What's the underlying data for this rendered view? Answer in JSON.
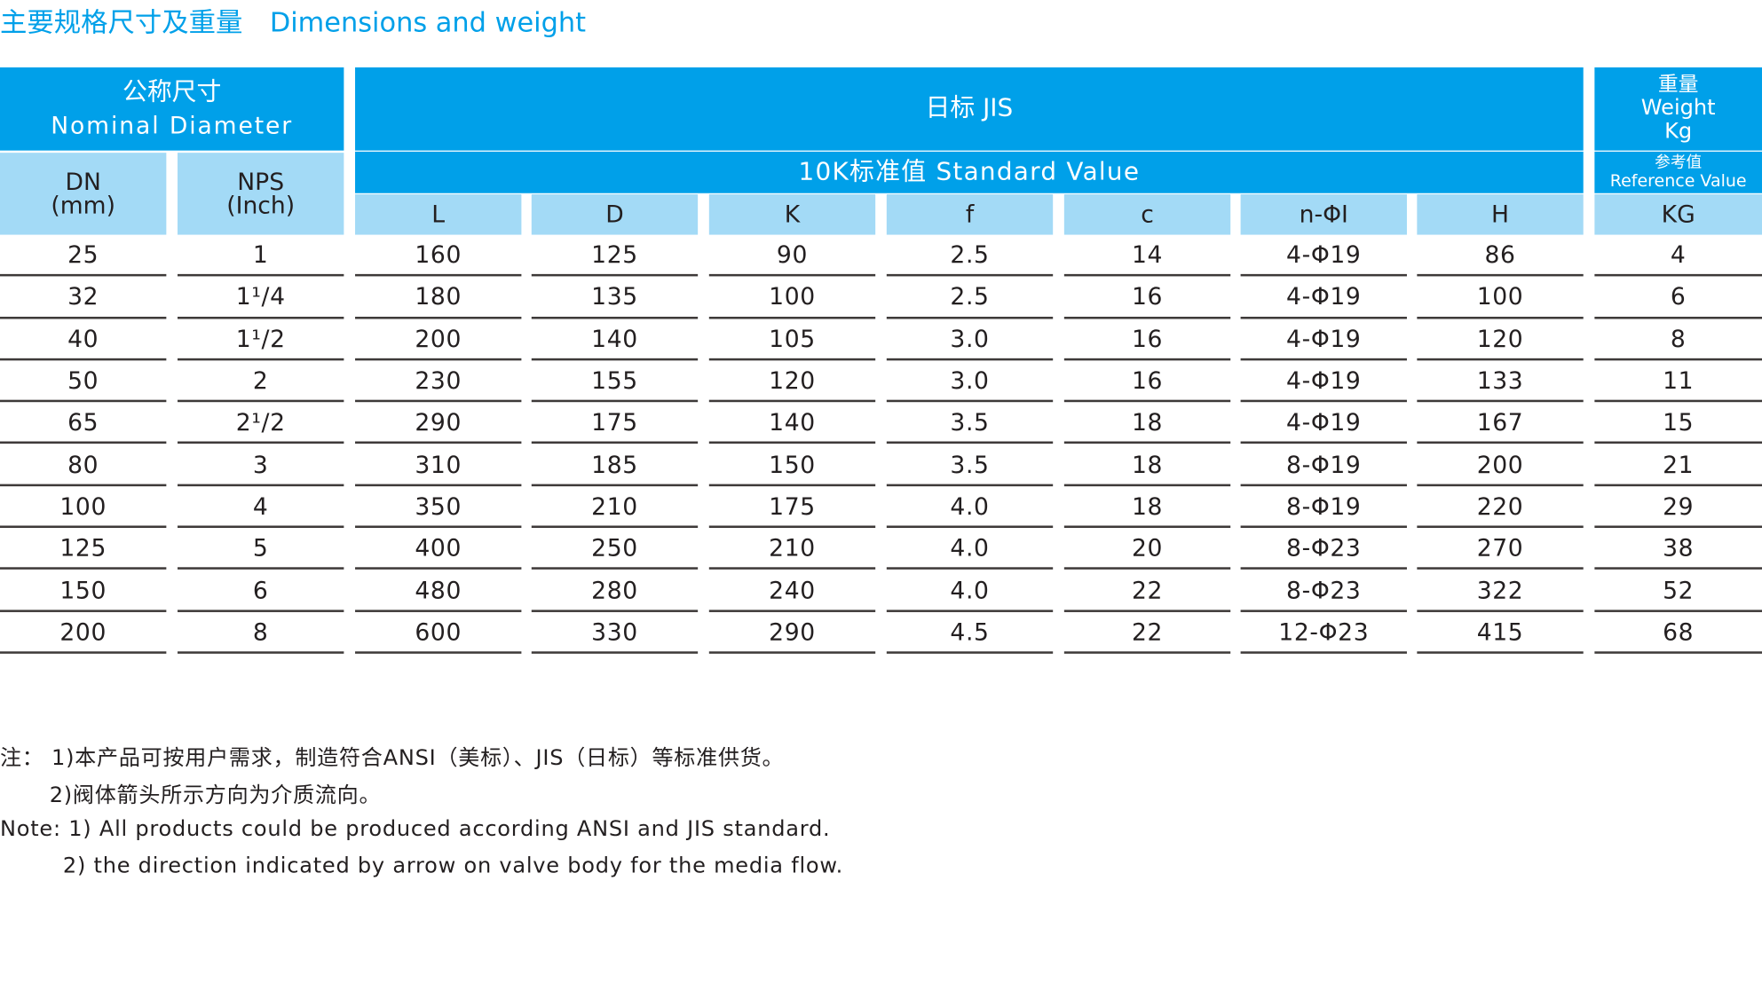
{
  "title": "主要规格尺寸及重量",
  "title_en": "Dimensions and weight",
  "table": {
    "header": {
      "nominal": "公称尺寸",
      "nominal_en": "Nominal Diameter",
      "jis": "日标 JIS",
      "standard": "10K标准值 Standard Value",
      "weight": "重量",
      "weight_en": "Weight",
      "weight_unit": "Kg",
      "reference": "参考值",
      "reference_en": "Reference Value",
      "columns": [
        {
          "label": "DN",
          "unit": "(mm)"
        },
        {
          "label": "NPS",
          "unit": "(Inch)"
        },
        {
          "label": "L"
        },
        {
          "label": "D"
        },
        {
          "label": "K"
        },
        {
          "label": "f"
        },
        {
          "label": "c"
        },
        {
          "label": "n-ΦI"
        },
        {
          "label": "H"
        },
        {
          "label": "KG"
        }
      ]
    },
    "rows": [
      [
        "25",
        "1",
        "160",
        "125",
        "90",
        "2.5",
        "14",
        "4-Φ19",
        "86",
        "4"
      ],
      [
        "32",
        "1¹/4",
        "180",
        "135",
        "100",
        "2.5",
        "16",
        "4-Φ19",
        "100",
        "6"
      ],
      [
        "40",
        "1¹/2",
        "200",
        "140",
        "105",
        "3.0",
        "16",
        "4-Φ19",
        "120",
        "8"
      ],
      [
        "50",
        "2",
        "230",
        "155",
        "120",
        "3.0",
        "16",
        "4-Φ19",
        "133",
        "11"
      ],
      [
        "65",
        "2¹/2",
        "290",
        "175",
        "140",
        "3.5",
        "18",
        "4-Φ19",
        "167",
        "15"
      ],
      [
        "80",
        "3",
        "310",
        "185",
        "150",
        "3.5",
        "18",
        "8-Φ19",
        "200",
        "21"
      ],
      [
        "100",
        "4",
        "350",
        "210",
        "175",
        "4.0",
        "18",
        "8-Φ19",
        "220",
        "29"
      ],
      [
        "125",
        "5",
        "400",
        "250",
        "210",
        "4.0",
        "20",
        "8-Φ23",
        "270",
        "38"
      ],
      [
        "150",
        "6",
        "480",
        "280",
        "240",
        "4.0",
        "22",
        "8-Φ23",
        "322",
        "52"
      ],
      [
        "200",
        "8",
        "600",
        "330",
        "290",
        "4.5",
        "22",
        "12-Φ23",
        "415",
        "68"
      ]
    ]
  },
  "notes": [
    "注： 1)本产品可按用户需求，制造符合ANSI（美标）、JIS（日标）等标准供货。",
    "2)阀体箭头所示方向为介质流向。",
    "Note: 1) All products could be produced according ANSI and JIS standard.",
    "2) the direction indicated by arrow on valve body for the media flow."
  ]
}
